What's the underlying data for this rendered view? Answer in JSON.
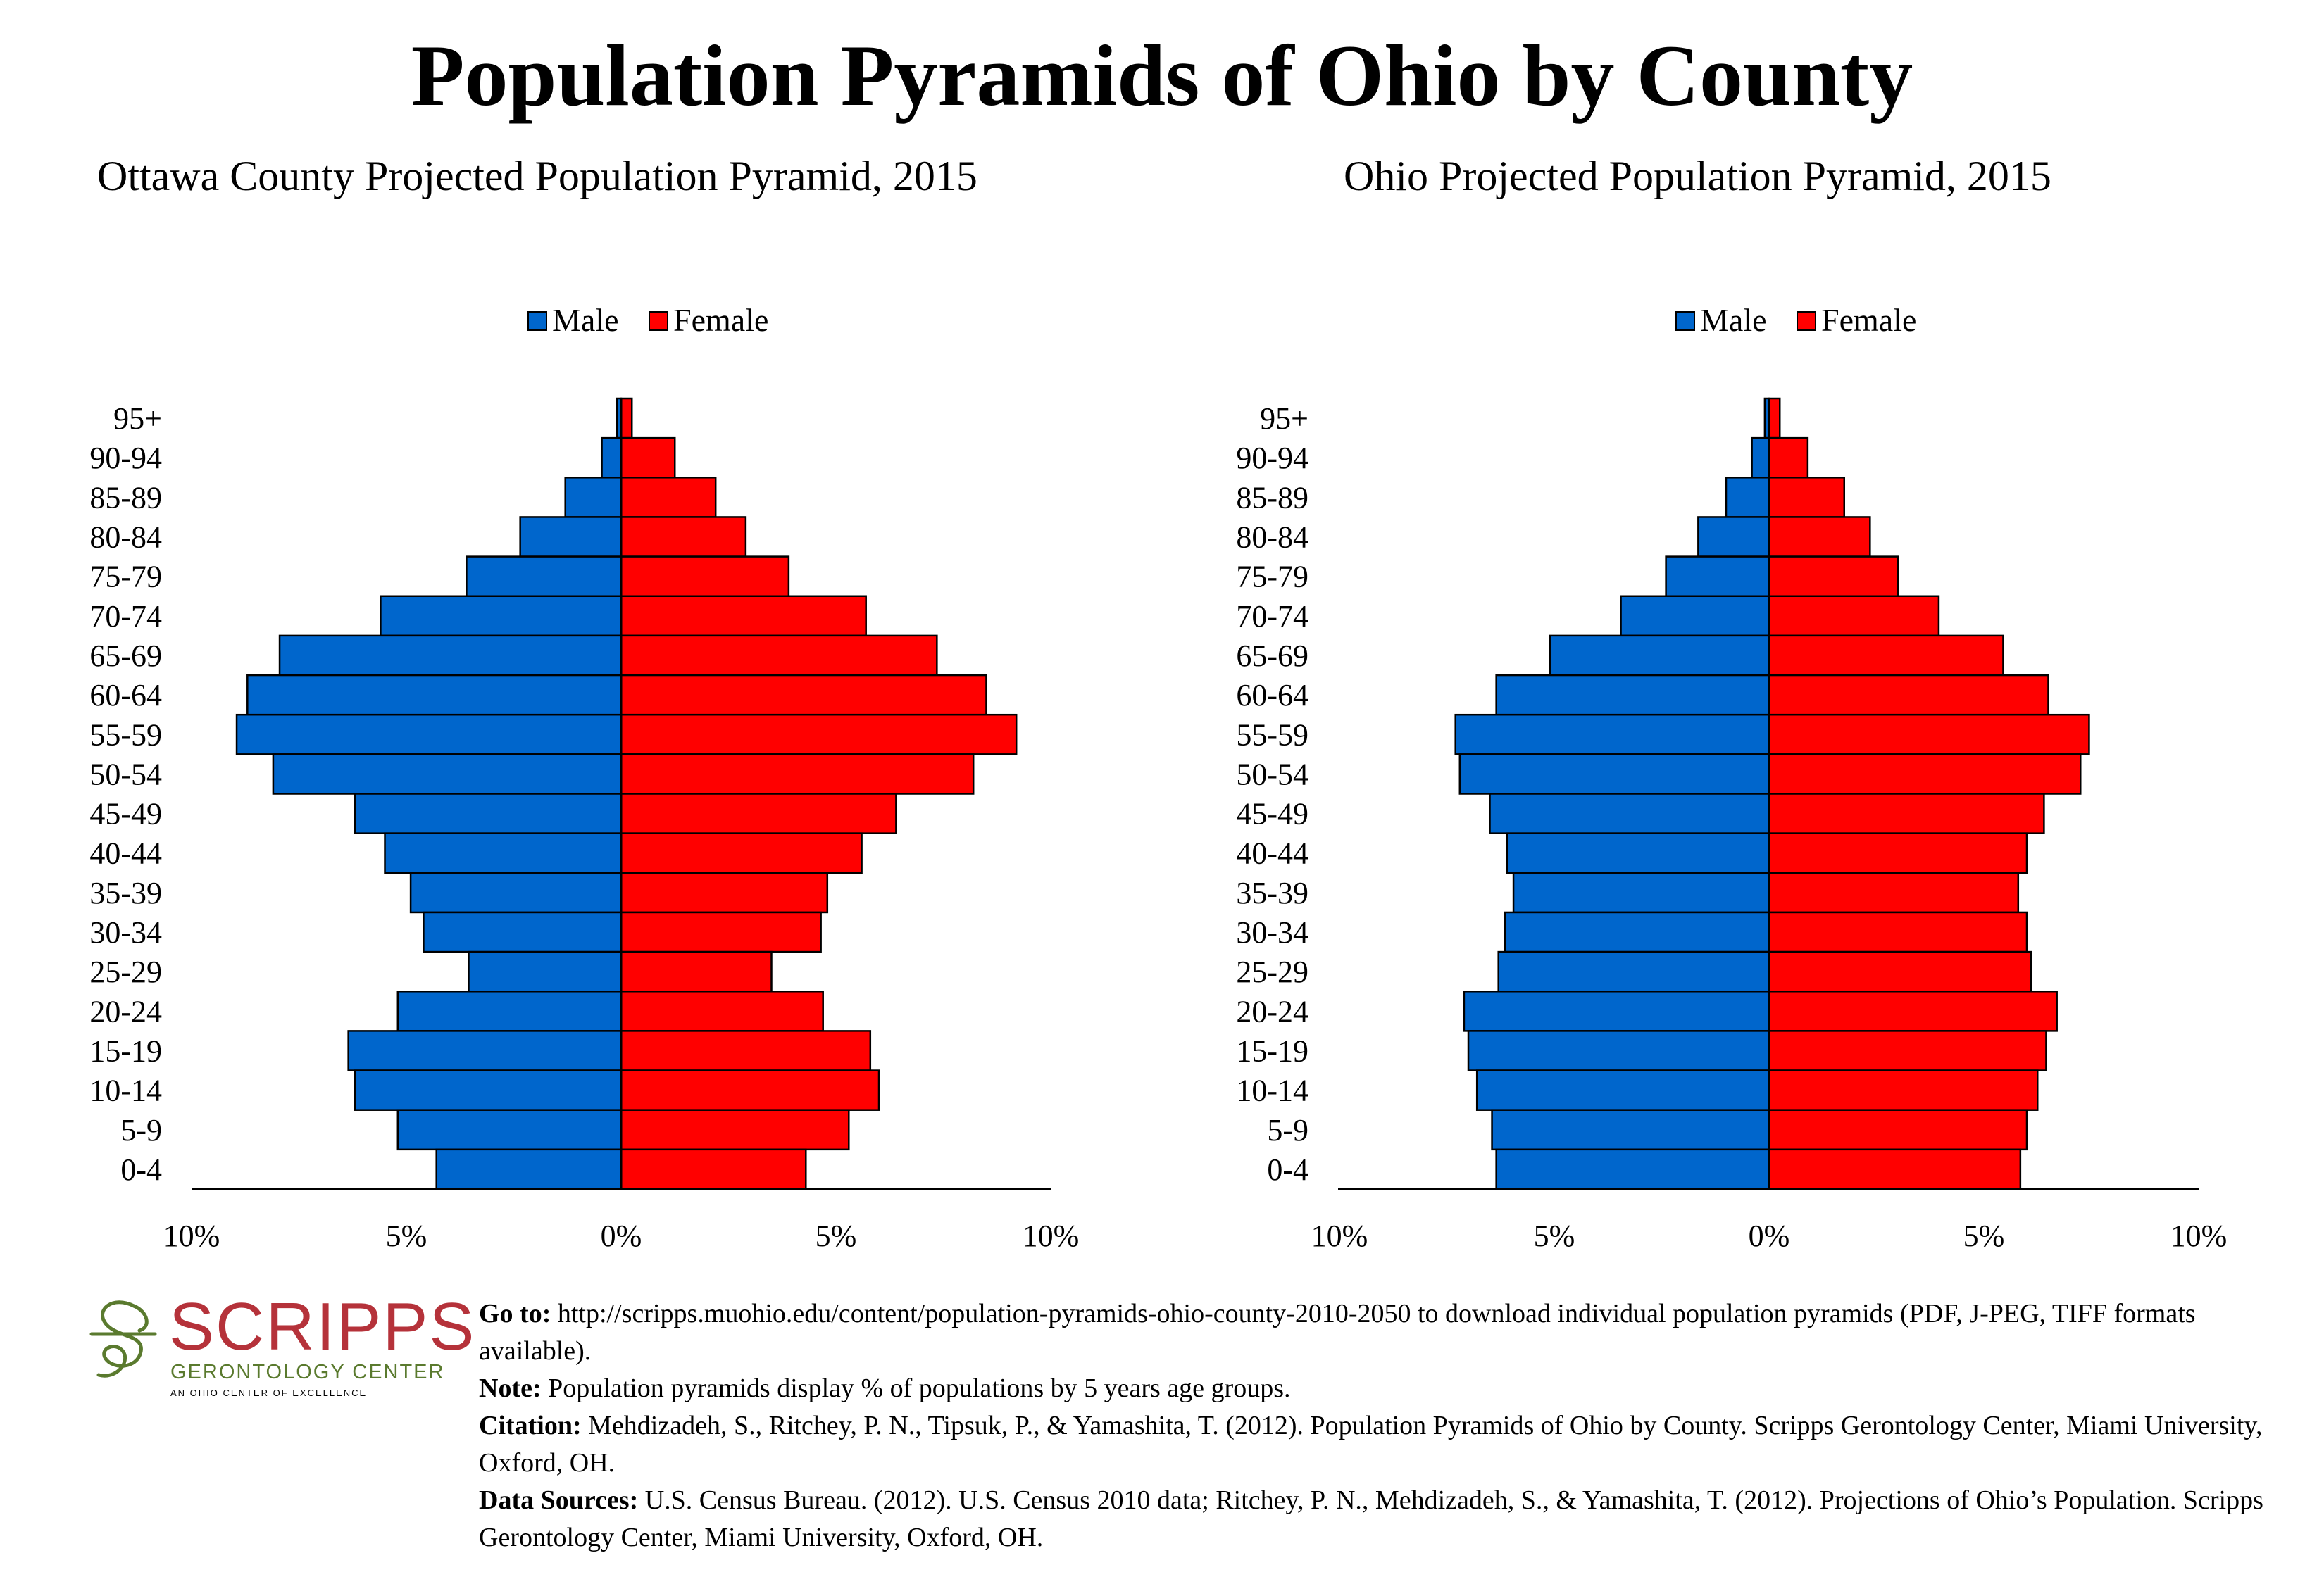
{
  "title": "Population Pyramids of Ohio by County",
  "chart_data": [
    {
      "type": "bar",
      "subtitle": "Ottawa County Projected Population Pyramid, 2015",
      "categories": [
        "95+",
        "90-94",
        "85-89",
        "80-84",
        "75-79",
        "70-74",
        "65-69",
        "60-64",
        "55-59",
        "50-54",
        "45-49",
        "40-44",
        "35-39",
        "30-34",
        "25-29",
        "20-24",
        "15-19",
        "10-14",
        "5-9",
        "0-4"
      ],
      "series": [
        {
          "name": "Male",
          "color": "#0066cc",
          "values": [
            0.1,
            0.45,
            1.3,
            2.35,
            3.6,
            5.6,
            7.95,
            8.7,
            8.95,
            8.1,
            6.2,
            5.5,
            4.9,
            4.6,
            3.55,
            5.2,
            6.35,
            6.2,
            5.2,
            4.3
          ]
        },
        {
          "name": "Female",
          "color": "#ff0000",
          "values": [
            0.25,
            1.25,
            2.2,
            2.9,
            3.9,
            5.7,
            7.35,
            8.5,
            9.2,
            8.2,
            6.4,
            5.6,
            4.8,
            4.65,
            3.5,
            4.7,
            5.8,
            6.0,
            5.3,
            4.3
          ]
        }
      ],
      "legend": [
        "Male",
        "Female"
      ],
      "legend_position": "top",
      "xlim": [
        -10,
        10
      ],
      "xticks": [
        "10%",
        "5%",
        "0%",
        "5%",
        "10%"
      ]
    },
    {
      "type": "bar",
      "subtitle": "Ohio Projected Population Pyramid, 2015",
      "categories": [
        "95+",
        "90-94",
        "85-89",
        "80-84",
        "75-79",
        "70-74",
        "65-69",
        "60-64",
        "55-59",
        "50-54",
        "45-49",
        "40-44",
        "35-39",
        "30-34",
        "25-29",
        "20-24",
        "15-19",
        "10-14",
        "5-9",
        "0-4"
      ],
      "series": [
        {
          "name": "Male",
          "color": "#0066cc",
          "values": [
            0.1,
            0.4,
            1.0,
            1.65,
            2.4,
            3.45,
            5.1,
            6.35,
            7.3,
            7.2,
            6.5,
            6.1,
            5.95,
            6.15,
            6.3,
            7.1,
            7.0,
            6.8,
            6.45,
            6.35
          ]
        },
        {
          "name": "Female",
          "color": "#ff0000",
          "values": [
            0.25,
            0.9,
            1.75,
            2.35,
            3.0,
            3.95,
            5.45,
            6.5,
            7.45,
            7.25,
            6.4,
            6.0,
            5.8,
            6.0,
            6.1,
            6.7,
            6.45,
            6.25,
            6.0,
            5.85
          ]
        }
      ],
      "legend": [
        "Male",
        "Female"
      ],
      "legend_position": "top",
      "xlim": [
        -10,
        10
      ],
      "xticks": [
        "10%",
        "5%",
        "0%",
        "5%",
        "10%"
      ]
    }
  ],
  "logo": {
    "name": "SCRIPPS",
    "subtitle": "GERONTOLOGY CENTER",
    "tagline": "AN OHIO CENTER OF EXCELLENCE"
  },
  "footer": {
    "goto_label": "Go to:",
    "goto_text": " http://scripps.muohio.edu/content/population-pyramids-ohio-county-2010-2050 to download individual population pyramids (PDF, J-PEG, TIFF formats available).",
    "note_label": "Note:",
    "note_text": " Population pyramids display % of populations by 5 years age groups.",
    "citation_label": "Citation:",
    "citation_text": " Mehdizadeh, S., Ritchey, P. N., Tipsuk, P., & Yamashita, T. (2012). Population Pyramids of Ohio by County. Scripps Gerontology Center, Miami University, Oxford, OH.",
    "sources_label": "Data Sources:",
    "sources_text": " U.S. Census Bureau. (2012). U.S. Census 2010 data; Ritchey, P. N., Mehdizadeh, S., & Yamashita, T. (2012). Projections of Ohio’s Population. Scripps Gerontology Center, Miami University, Oxford, OH."
  }
}
